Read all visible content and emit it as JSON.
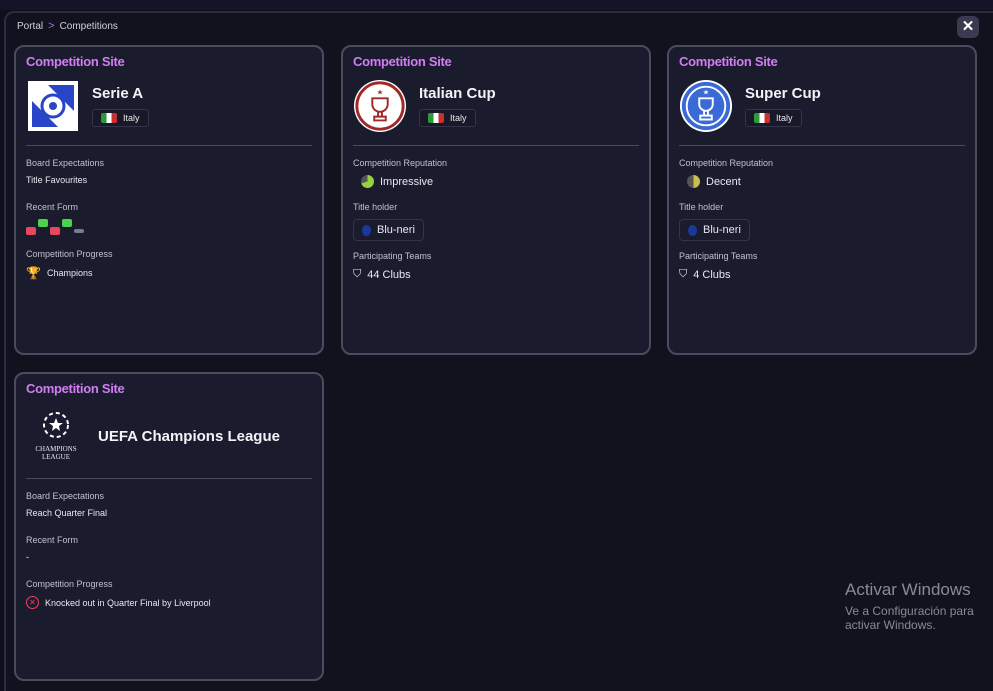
{
  "breadcrumb": {
    "items": [
      "Portal",
      "Competitions"
    ]
  },
  "close_label": "✕",
  "cards": [
    {
      "header": "Competition Site",
      "name": "Serie A",
      "country": "Italy",
      "sections": {
        "board_label": "Board Expectations",
        "board_value": "Title Favourites",
        "form_label": "Recent Form",
        "form": [
          "L",
          "W",
          "L",
          "W",
          "-"
        ],
        "progress_label": "Competition Progress",
        "progress_value": "Champions"
      }
    },
    {
      "header": "Competition Site",
      "name": "Italian Cup",
      "country": "Italy",
      "sections": {
        "reputation_label": "Competition Reputation",
        "reputation_value": "Impressive",
        "holder_label": "Title holder",
        "holder_value": "Blu-neri",
        "teams_label": "Participating Teams",
        "teams_value": "44  Clubs"
      }
    },
    {
      "header": "Competition Site",
      "name": "Super Cup",
      "country": "Italy",
      "sections": {
        "reputation_label": "Competition Reputation",
        "reputation_value": "Decent",
        "holder_label": "Title holder",
        "holder_value": "Blu-neri",
        "teams_label": "Participating Teams",
        "teams_value": "4 Clubs"
      }
    },
    {
      "header": "Competition Site",
      "name": "UEFA Champions League",
      "logo_text": [
        "CHAMPIONS",
        "LEAGUE"
      ],
      "sections": {
        "board_label": "Board Expectations",
        "board_value": "Reach Quarter Final",
        "form_label": "Recent Form",
        "form_value": "-",
        "progress_label": "Competition Progress",
        "progress_value": "Knocked out in Quarter Final by Liverpool"
      }
    }
  ],
  "colors": {
    "win": "#4cd34c",
    "loss": "#e8475f",
    "draw": "#7a7a90",
    "accent": "#d07ef0"
  },
  "watermark": {
    "line1": "Activar Windows",
    "line2": "Ve a Configuración para activar Windows."
  }
}
